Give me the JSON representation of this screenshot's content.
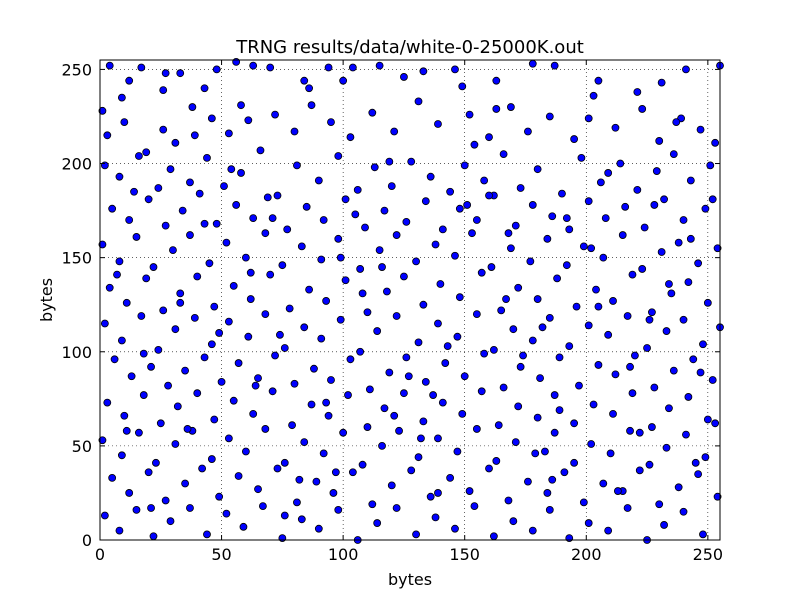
{
  "chart_data": {
    "type": "scatter",
    "title": "TRNG results/data/white-0-25000K.out",
    "xlabel": "bytes",
    "ylabel": "bytes",
    "xlim": [
      0,
      255
    ],
    "ylim": [
      0,
      255
    ],
    "x_ticks": [
      0,
      50,
      100,
      150,
      200,
      250
    ],
    "y_ticks": [
      0,
      50,
      100,
      150,
      200,
      250
    ],
    "grid": true,
    "grid_style": "dotted",
    "marker_fill": "#0000ff",
    "marker_edge": "#000000",
    "points": [
      [
        1,
        228
      ],
      [
        4,
        252
      ],
      [
        9,
        235
      ],
      [
        12,
        244
      ],
      [
        17,
        251
      ],
      [
        27,
        248
      ],
      [
        33,
        248
      ],
      [
        43,
        240
      ],
      [
        48,
        250
      ],
      [
        56,
        254
      ],
      [
        63,
        252
      ],
      [
        70,
        251
      ],
      [
        84,
        244
      ],
      [
        94,
        251
      ],
      [
        100,
        244
      ],
      [
        104,
        251
      ],
      [
        115,
        252
      ],
      [
        125,
        246
      ],
      [
        133,
        249
      ],
      [
        146,
        250
      ],
      [
        163,
        244
      ],
      [
        178,
        253
      ],
      [
        187,
        252
      ],
      [
        205,
        244
      ],
      [
        221,
        238
      ],
      [
        231,
        243
      ],
      [
        241,
        250
      ],
      [
        255,
        252
      ],
      [
        3,
        215
      ],
      [
        10,
        222
      ],
      [
        19,
        206
      ],
      [
        26,
        218
      ],
      [
        31,
        211
      ],
      [
        38,
        230
      ],
      [
        46,
        224
      ],
      [
        53,
        216
      ],
      [
        61,
        223
      ],
      [
        72,
        226
      ],
      [
        80,
        217
      ],
      [
        87,
        231
      ],
      [
        95,
        222
      ],
      [
        103,
        214
      ],
      [
        112,
        227
      ],
      [
        121,
        217
      ],
      [
        131,
        233
      ],
      [
        139,
        221
      ],
      [
        152,
        226
      ],
      [
        160,
        214
      ],
      [
        169,
        230
      ],
      [
        176,
        217
      ],
      [
        185,
        225
      ],
      [
        195,
        213
      ],
      [
        201,
        224
      ],
      [
        212,
        219
      ],
      [
        223,
        229
      ],
      [
        230,
        212
      ],
      [
        239,
        224
      ],
      [
        247,
        218
      ],
      [
        253,
        211
      ],
      [
        2,
        199
      ],
      [
        8,
        193
      ],
      [
        16,
        204
      ],
      [
        24,
        187
      ],
      [
        29,
        197
      ],
      [
        37,
        190
      ],
      [
        44,
        203
      ],
      [
        51,
        188
      ],
      [
        58,
        195
      ],
      [
        66,
        207
      ],
      [
        73,
        183
      ],
      [
        81,
        199
      ],
      [
        90,
        191
      ],
      [
        98,
        204
      ],
      [
        106,
        186
      ],
      [
        113,
        198
      ],
      [
        120,
        188
      ],
      [
        128,
        201
      ],
      [
        136,
        193
      ],
      [
        144,
        185
      ],
      [
        150,
        199
      ],
      [
        158,
        191
      ],
      [
        166,
        205
      ],
      [
        173,
        187
      ],
      [
        180,
        197
      ],
      [
        190,
        184
      ],
      [
        198,
        203
      ],
      [
        206,
        190
      ],
      [
        214,
        200
      ],
      [
        221,
        186
      ],
      [
        229,
        196
      ],
      [
        236,
        205
      ],
      [
        243,
        191
      ],
      [
        251,
        199
      ],
      [
        5,
        176
      ],
      [
        12,
        170
      ],
      [
        20,
        181
      ],
      [
        27,
        167
      ],
      [
        34,
        175
      ],
      [
        41,
        184
      ],
      [
        48,
        168
      ],
      [
        56,
        178
      ],
      [
        63,
        171
      ],
      [
        69,
        182
      ],
      [
        77,
        165
      ],
      [
        85,
        177
      ],
      [
        92,
        170
      ],
      [
        101,
        181
      ],
      [
        109,
        166
      ],
      [
        117,
        175
      ],
      [
        126,
        169
      ],
      [
        134,
        180
      ],
      [
        141,
        165
      ],
      [
        148,
        176
      ],
      [
        155,
        170
      ],
      [
        162,
        183
      ],
      [
        171,
        167
      ],
      [
        178,
        178
      ],
      [
        186,
        172
      ],
      [
        193,
        165
      ],
      [
        201,
        180
      ],
      [
        208,
        171
      ],
      [
        216,
        177
      ],
      [
        224,
        166
      ],
      [
        232,
        181
      ],
      [
        240,
        170
      ],
      [
        249,
        176
      ],
      [
        1,
        157
      ],
      [
        8,
        148
      ],
      [
        15,
        161
      ],
      [
        22,
        145
      ],
      [
        30,
        154
      ],
      [
        37,
        162
      ],
      [
        45,
        147
      ],
      [
        52,
        158
      ],
      [
        60,
        150
      ],
      [
        68,
        163
      ],
      [
        75,
        146
      ],
      [
        83,
        156
      ],
      [
        91,
        149
      ],
      [
        98,
        160
      ],
      [
        107,
        144
      ],
      [
        115,
        154
      ],
      [
        122,
        162
      ],
      [
        130,
        148
      ],
      [
        138,
        157
      ],
      [
        146,
        151
      ],
      [
        153,
        163
      ],
      [
        161,
        145
      ],
      [
        169,
        155
      ],
      [
        177,
        148
      ],
      [
        184,
        160
      ],
      [
        192,
        146
      ],
      [
        199,
        156
      ],
      [
        207,
        150
      ],
      [
        215,
        162
      ],
      [
        223,
        144
      ],
      [
        231,
        153
      ],
      [
        238,
        158
      ],
      [
        246,
        147
      ],
      [
        254,
        155
      ],
      [
        4,
        134
      ],
      [
        11,
        126
      ],
      [
        19,
        139
      ],
      [
        26,
        122
      ],
      [
        33,
        131
      ],
      [
        40,
        140
      ],
      [
        47,
        124
      ],
      [
        55,
        135
      ],
      [
        62,
        128
      ],
      [
        70,
        141
      ],
      [
        78,
        123
      ],
      [
        86,
        133
      ],
      [
        93,
        127
      ],
      [
        101,
        138
      ],
      [
        110,
        121
      ],
      [
        118,
        132
      ],
      [
        125,
        140
      ],
      [
        133,
        125
      ],
      [
        140,
        136
      ],
      [
        148,
        129
      ],
      [
        157,
        142
      ],
      [
        165,
        122
      ],
      [
        172,
        134
      ],
      [
        180,
        128
      ],
      [
        188,
        139
      ],
      [
        196,
        124
      ],
      [
        204,
        133
      ],
      [
        211,
        127
      ],
      [
        219,
        141
      ],
      [
        227,
        121
      ],
      [
        235,
        131
      ],
      [
        242,
        137
      ],
      [
        250,
        126
      ],
      [
        2,
        115
      ],
      [
        9,
        106
      ],
      [
        17,
        119
      ],
      [
        24,
        101
      ],
      [
        31,
        112
      ],
      [
        39,
        118
      ],
      [
        46,
        104
      ],
      [
        53,
        116
      ],
      [
        61,
        108
      ],
      [
        68,
        120
      ],
      [
        76,
        102
      ],
      [
        84,
        113
      ],
      [
        91,
        107
      ],
      [
        99,
        117
      ],
      [
        107,
        100
      ],
      [
        114,
        111
      ],
      [
        122,
        119
      ],
      [
        131,
        105
      ],
      [
        139,
        115
      ],
      [
        147,
        108
      ],
      [
        155,
        120
      ],
      [
        162,
        101
      ],
      [
        170,
        112
      ],
      [
        178,
        106
      ],
      [
        185,
        118
      ],
      [
        193,
        103
      ],
      [
        201,
        114
      ],
      [
        209,
        109
      ],
      [
        217,
        119
      ],
      [
        225,
        102
      ],
      [
        233,
        111
      ],
      [
        240,
        117
      ],
      [
        248,
        104
      ],
      [
        255,
        113
      ],
      [
        6,
        96
      ],
      [
        13,
        87
      ],
      [
        21,
        92
      ],
      [
        28,
        82
      ],
      [
        35,
        90
      ],
      [
        43,
        97
      ],
      [
        50,
        84
      ],
      [
        57,
        94
      ],
      [
        65,
        86
      ],
      [
        72,
        98
      ],
      [
        80,
        83
      ],
      [
        88,
        91
      ],
      [
        95,
        85
      ],
      [
        103,
        96
      ],
      [
        111,
        80
      ],
      [
        119,
        89
      ],
      [
        126,
        97
      ],
      [
        134,
        84
      ],
      [
        142,
        94
      ],
      [
        150,
        87
      ],
      [
        158,
        99
      ],
      [
        166,
        81
      ],
      [
        173,
        92
      ],
      [
        181,
        86
      ],
      [
        189,
        97
      ],
      [
        197,
        82
      ],
      [
        205,
        93
      ],
      [
        212,
        88
      ],
      [
        220,
        98
      ],
      [
        228,
        81
      ],
      [
        236,
        90
      ],
      [
        244,
        96
      ],
      [
        252,
        85
      ],
      [
        3,
        73
      ],
      [
        10,
        66
      ],
      [
        18,
        77
      ],
      [
        25,
        62
      ],
      [
        32,
        71
      ],
      [
        40,
        78
      ],
      [
        47,
        64
      ],
      [
        55,
        74
      ],
      [
        63,
        67
      ],
      [
        71,
        79
      ],
      [
        79,
        61
      ],
      [
        87,
        72
      ],
      [
        94,
        66
      ],
      [
        102,
        77
      ],
      [
        110,
        60
      ],
      [
        117,
        70
      ],
      [
        125,
        78
      ],
      [
        133,
        63
      ],
      [
        141,
        73
      ],
      [
        149,
        67
      ],
      [
        157,
        79
      ],
      [
        164,
        61
      ],
      [
        172,
        71
      ],
      [
        180,
        65
      ],
      [
        187,
        77
      ],
      [
        195,
        62
      ],
      [
        203,
        72
      ],
      [
        211,
        67
      ],
      [
        219,
        78
      ],
      [
        227,
        60
      ],
      [
        234,
        70
      ],
      [
        242,
        76
      ],
      [
        250,
        64
      ],
      [
        1,
        53
      ],
      [
        9,
        45
      ],
      [
        16,
        57
      ],
      [
        23,
        41
      ],
      [
        31,
        51
      ],
      [
        38,
        58
      ],
      [
        46,
        43
      ],
      [
        53,
        54
      ],
      [
        60,
        47
      ],
      [
        68,
        59
      ],
      [
        76,
        41
      ],
      [
        84,
        52
      ],
      [
        92,
        46
      ],
      [
        100,
        57
      ],
      [
        108,
        40
      ],
      [
        116,
        50
      ],
      [
        123,
        58
      ],
      [
        131,
        44
      ],
      [
        139,
        54
      ],
      [
        147,
        47
      ],
      [
        155,
        59
      ],
      [
        163,
        42
      ],
      [
        171,
        52
      ],
      [
        179,
        46
      ],
      [
        187,
        57
      ],
      [
        195,
        41
      ],
      [
        202,
        51
      ],
      [
        210,
        46
      ],
      [
        218,
        58
      ],
      [
        226,
        40
      ],
      [
        233,
        49
      ],
      [
        241,
        56
      ],
      [
        249,
        44
      ],
      [
        5,
        33
      ],
      [
        12,
        25
      ],
      [
        20,
        36
      ],
      [
        27,
        21
      ],
      [
        35,
        30
      ],
      [
        42,
        38
      ],
      [
        49,
        23
      ],
      [
        57,
        34
      ],
      [
        65,
        27
      ],
      [
        73,
        38
      ],
      [
        81,
        20
      ],
      [
        89,
        31
      ],
      [
        96,
        25
      ],
      [
        104,
        36
      ],
      [
        112,
        19
      ],
      [
        120,
        29
      ],
      [
        128,
        37
      ],
      [
        136,
        23
      ],
      [
        144,
        33
      ],
      [
        152,
        26
      ],
      [
        160,
        38
      ],
      [
        168,
        21
      ],
      [
        176,
        31
      ],
      [
        184,
        25
      ],
      [
        191,
        36
      ],
      [
        199,
        20
      ],
      [
        207,
        30
      ],
      [
        215,
        26
      ],
      [
        222,
        37
      ],
      [
        230,
        19
      ],
      [
        238,
        28
      ],
      [
        246,
        35
      ],
      [
        254,
        23
      ],
      [
        2,
        13
      ],
      [
        8,
        5
      ],
      [
        15,
        16
      ],
      [
        22,
        2
      ],
      [
        29,
        10
      ],
      [
        37,
        17
      ],
      [
        44,
        3
      ],
      [
        52,
        14
      ],
      [
        59,
        7
      ],
      [
        67,
        18
      ],
      [
        75,
        1
      ],
      [
        83,
        11
      ],
      [
        90,
        6
      ],
      [
        98,
        16
      ],
      [
        106,
        0
      ],
      [
        114,
        9
      ],
      [
        122,
        17
      ],
      [
        130,
        3
      ],
      [
        138,
        12
      ],
      [
        146,
        6
      ],
      [
        154,
        18
      ],
      [
        162,
        2
      ],
      [
        170,
        10
      ],
      [
        178,
        5
      ],
      [
        185,
        16
      ],
      [
        193,
        1
      ],
      [
        201,
        9
      ],
      [
        209,
        5
      ],
      [
        217,
        17
      ],
      [
        225,
        0
      ],
      [
        232,
        8
      ],
      [
        240,
        15
      ],
      [
        248,
        3
      ],
      [
        7,
        141
      ],
      [
        14,
        185
      ],
      [
        36,
        59
      ],
      [
        58,
        231
      ],
      [
        74,
        109
      ],
      [
        97,
        36
      ],
      [
        119,
        201
      ],
      [
        137,
        77
      ],
      [
        151,
        178
      ],
      [
        167,
        128
      ],
      [
        183,
        47
      ],
      [
        202,
        155
      ],
      [
        218,
        92
      ],
      [
        237,
        222
      ],
      [
        253,
        62
      ],
      [
        21,
        17
      ],
      [
        43,
        168
      ],
      [
        64,
        82
      ],
      [
        86,
        240
      ],
      [
        108,
        131
      ],
      [
        132,
        54
      ],
      [
        154,
        210
      ],
      [
        174,
        98
      ],
      [
        192,
        171
      ],
      [
        213,
        26
      ],
      [
        234,
        136
      ],
      [
        252,
        181
      ],
      [
        18,
        99
      ],
      [
        39,
        215
      ],
      [
        62,
        142
      ],
      [
        82,
        32
      ],
      [
        105,
        173
      ],
      [
        127,
        87
      ],
      [
        149,
        241
      ],
      [
        168,
        163
      ],
      [
        189,
        69
      ],
      [
        209,
        195
      ],
      [
        226,
        117
      ],
      [
        245,
        41
      ],
      [
        11,
        58
      ],
      [
        33,
        126
      ],
      [
        54,
        197
      ],
      [
        76,
        13
      ],
      [
        99,
        150
      ],
      [
        121,
        66
      ],
      [
        143,
        103
      ],
      [
        163,
        229
      ],
      [
        186,
        32
      ],
      [
        205,
        124
      ],
      [
        228,
        178
      ],
      [
        247,
        89
      ],
      [
        26,
        239
      ],
      [
        49,
        110
      ],
      [
        71,
        171
      ],
      [
        93,
        73
      ],
      [
        116,
        145
      ],
      [
        139,
        25
      ],
      [
        160,
        183
      ],
      [
        182,
        113
      ],
      [
        203,
        236
      ],
      [
        222,
        57
      ],
      [
        243,
        160
      ]
    ]
  }
}
